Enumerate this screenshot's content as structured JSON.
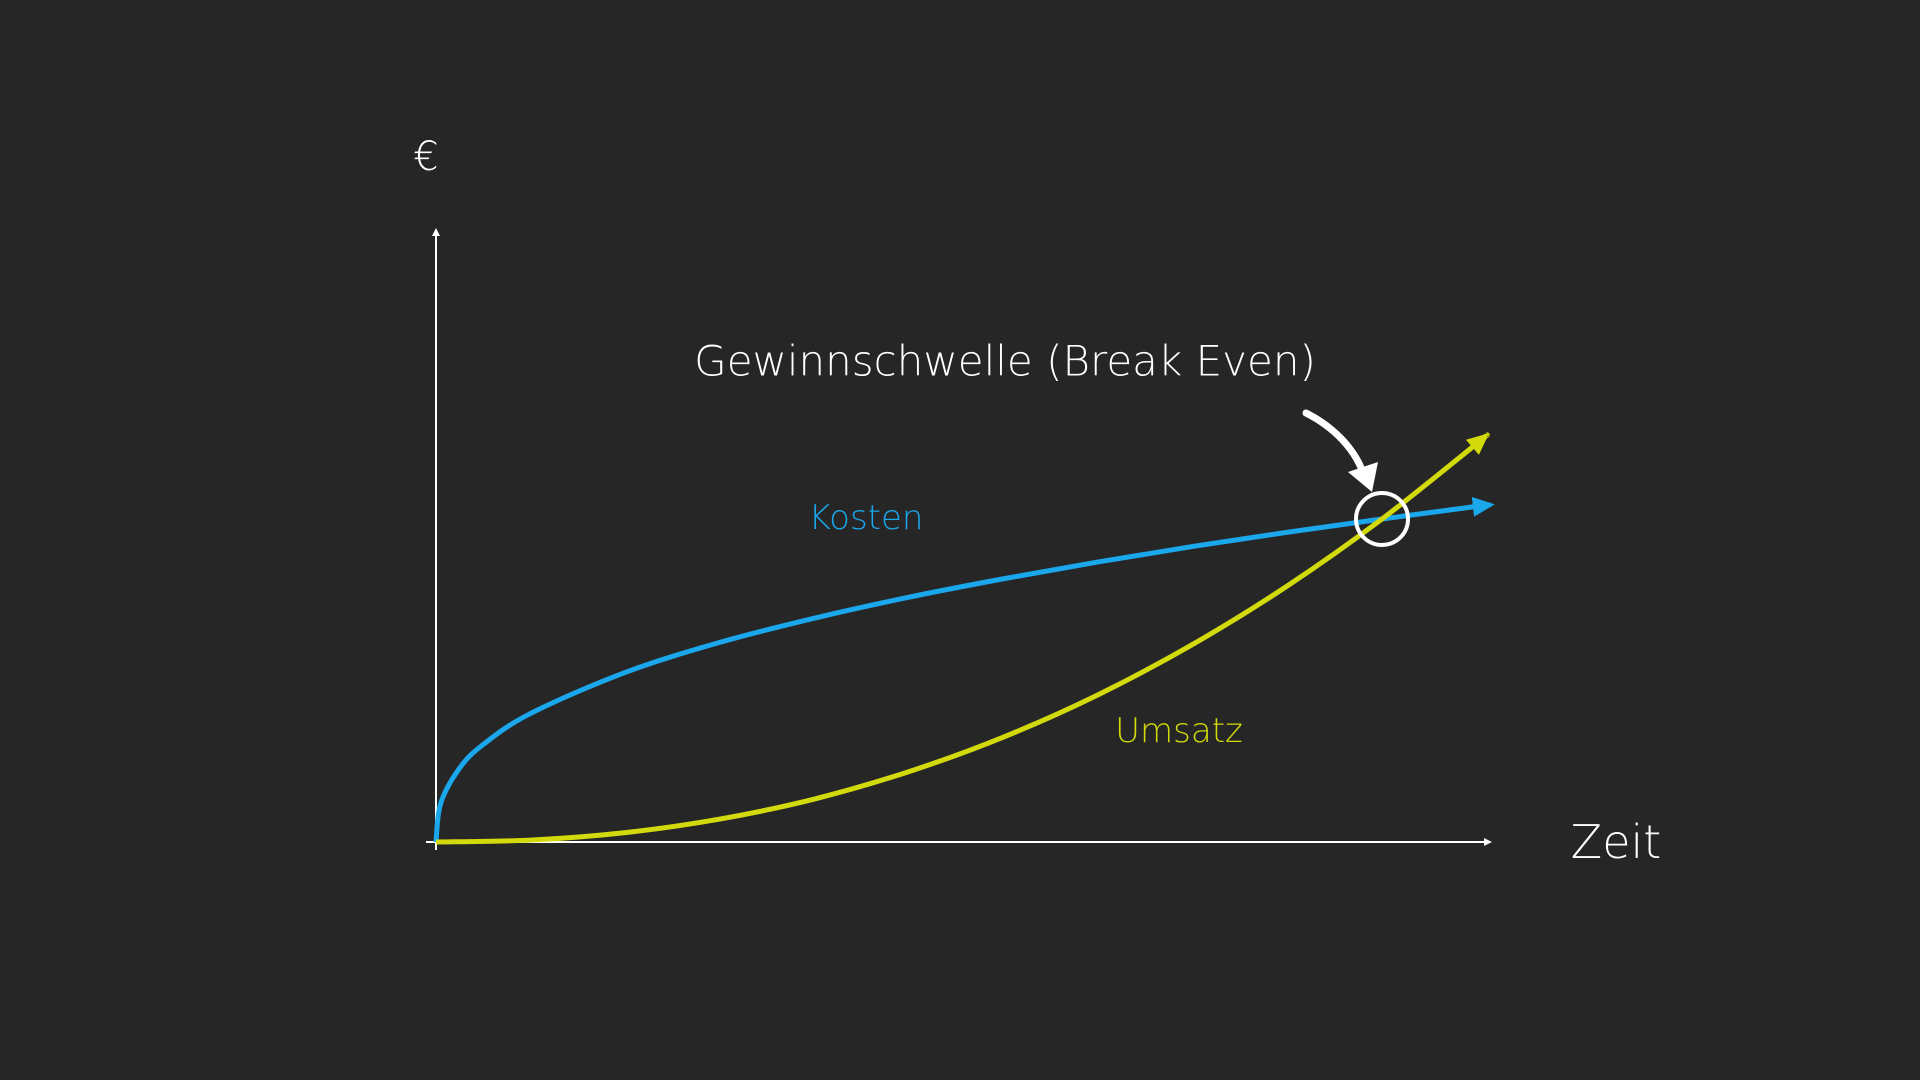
{
  "colors": {
    "background": "#262626",
    "axis": "#ffffff",
    "kosten": "#1aa7ec",
    "umsatz": "#d2da0c",
    "annotation": "#ffffff"
  },
  "chart_data": {
    "type": "line",
    "title": "",
    "xlabel": "Zeit",
    "ylabel": "€",
    "xlim": [
      0,
      11.2
    ],
    "ylim": [
      0,
      19
    ],
    "grid": false,
    "ticks": false,
    "series": [
      {
        "name": "Kosten",
        "color": "#1aa7ec",
        "x": [
          0,
          0.05,
          0.25,
          0.5,
          1,
          2,
          3,
          4,
          5,
          6,
          7,
          8,
          9,
          10,
          11,
          11.15
        ],
        "y": [
          0,
          1.2,
          2.29,
          3.02,
          3.98,
          5.25,
          6.18,
          6.93,
          7.58,
          8.15,
          8.67,
          9.15,
          9.59,
          10,
          10.39,
          10.44
        ]
      },
      {
        "name": "Umsatz",
        "color": "#d2da0c",
        "x": [
          0,
          1,
          2,
          3,
          4,
          5,
          6,
          7,
          8,
          9,
          10,
          11,
          11.1
        ],
        "y": [
          0,
          0.06,
          0.29,
          0.71,
          1.33,
          2.18,
          3.25,
          4.56,
          6.12,
          7.93,
          10,
          12.33,
          12.58
        ]
      }
    ],
    "annotations": [
      {
        "text": "Gewinnschwelle (Break Even)",
        "x": 10,
        "y": 10,
        "marker": "circle",
        "arrow": "hand-drawn"
      }
    ]
  }
}
